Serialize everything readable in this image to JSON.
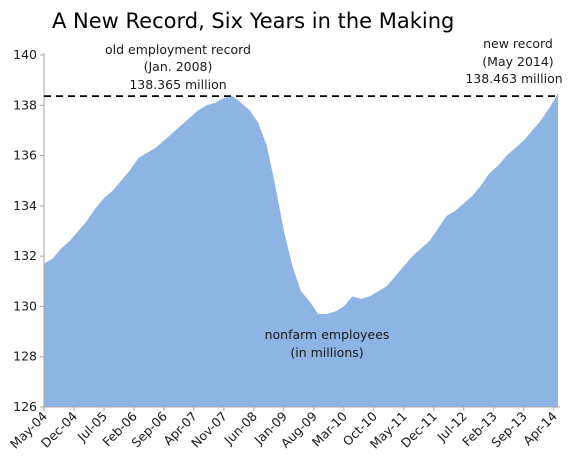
{
  "chart_data": {
    "type": "area",
    "title": "A New Record, Six Years in the Making",
    "xlabel": "",
    "ylabel": "",
    "ylim": [
      126,
      140
    ],
    "yticks": [
      126,
      128,
      130,
      132,
      134,
      136,
      138,
      140
    ],
    "x_tick_labels": [
      "May-04",
      "Dec-04",
      "Jul-05",
      "Feb-06",
      "Sep-06",
      "Apr-07",
      "Nov-07",
      "Jun-08",
      "Jan-09",
      "Aug-09",
      "Mar-10",
      "Oct-10",
      "May-11",
      "Dec-11",
      "Jul-12",
      "Feb-13",
      "Sep-13",
      "Apr-14"
    ],
    "x_start": "May-04",
    "x_end": "May-14",
    "series": [
      {
        "name": "nonfarm employees",
        "color": "#8eb4e3",
        "x": [
          "May-04",
          "Jul-04",
          "Sep-04",
          "Nov-04",
          "Jan-05",
          "Mar-05",
          "May-05",
          "Jul-05",
          "Sep-05",
          "Nov-05",
          "Jan-06",
          "Mar-06",
          "May-06",
          "Jul-06",
          "Sep-06",
          "Nov-06",
          "Jan-07",
          "Mar-07",
          "May-07",
          "Jul-07",
          "Sep-07",
          "Nov-07",
          "Jan-08",
          "Mar-08",
          "May-08",
          "Jul-08",
          "Sep-08",
          "Nov-08",
          "Jan-09",
          "Mar-09",
          "May-09",
          "Jul-09",
          "Sep-09",
          "Nov-09",
          "Jan-10",
          "Mar-10",
          "May-10",
          "Jul-10",
          "Sep-10",
          "Nov-10",
          "Jan-11",
          "Mar-11",
          "May-11",
          "Jul-11",
          "Sep-11",
          "Nov-11",
          "Jan-12",
          "Mar-12",
          "May-12",
          "Jul-12",
          "Sep-12",
          "Nov-12",
          "Jan-13",
          "Mar-13",
          "May-13",
          "Jul-13",
          "Sep-13",
          "Nov-13",
          "Jan-14",
          "Mar-14",
          "May-14"
        ],
        "values": [
          131.7,
          131.9,
          132.3,
          132.6,
          133.0,
          133.4,
          133.9,
          134.3,
          134.6,
          135.0,
          135.4,
          135.9,
          136.1,
          136.3,
          136.6,
          136.9,
          137.2,
          137.5,
          137.8,
          138.0,
          138.1,
          138.3,
          138.365,
          138.1,
          137.8,
          137.3,
          136.4,
          134.8,
          133.0,
          131.6,
          130.6,
          130.2,
          129.7,
          129.7,
          129.8,
          130.0,
          130.4,
          130.3,
          130.4,
          130.6,
          130.8,
          131.2,
          131.6,
          132.0,
          132.3,
          132.6,
          133.1,
          133.6,
          133.8,
          134.1,
          134.4,
          134.8,
          135.3,
          135.6,
          136.0,
          136.3,
          136.6,
          137.0,
          137.4,
          137.9,
          138.463
        ]
      }
    ],
    "reference_line": {
      "value": 138.365,
      "style": "dashed",
      "color": "#000000"
    },
    "fill_color": "#8eb4e3",
    "axis_color": "#a6a6a6",
    "grid": false,
    "legend": "none",
    "annotations": {
      "old_record": [
        "old employment record",
        "(Jan. 2008)",
        "138.365 million"
      ],
      "new_record": [
        "new record",
        "(May 2014)",
        "138.463 million"
      ],
      "series_label": [
        "nonfarm employees",
        "(in millions)"
      ]
    }
  }
}
